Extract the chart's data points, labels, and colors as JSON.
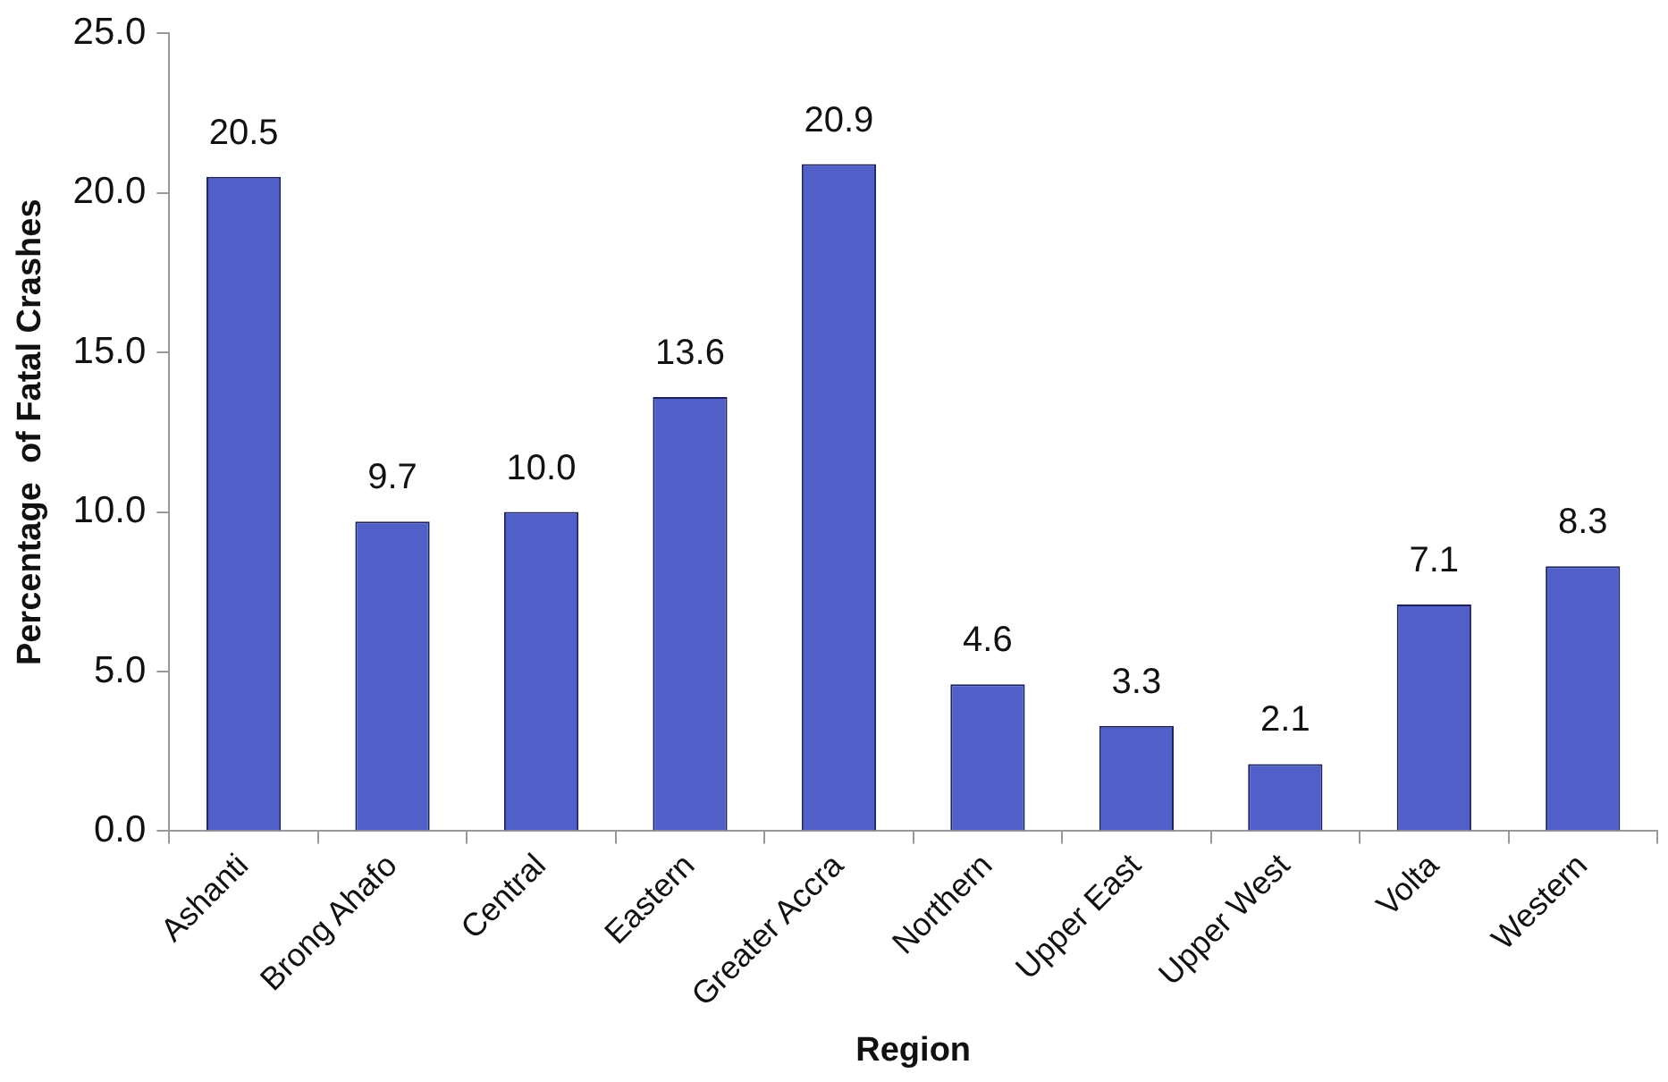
{
  "chart_data": {
    "type": "bar",
    "xlabel": "Region",
    "ylabel": "Percentage  of Fatal Crashes",
    "categories": [
      "Ashanti",
      "Brong Ahafo",
      "Central",
      "Eastern",
      "Greater Accra",
      "Northern",
      "Upper East",
      "Upper West",
      "Volta",
      "Western"
    ],
    "values": [
      20.5,
      9.7,
      10.0,
      13.6,
      20.9,
      4.6,
      3.3,
      2.1,
      7.1,
      8.3
    ],
    "value_labels": [
      "20.5",
      "9.7",
      "10.0",
      "13.6",
      "20.9",
      "4.6",
      "3.3",
      "2.1",
      "7.1",
      "8.3"
    ],
    "color": "#5060c8",
    "ylim": [
      0,
      25
    ],
    "yticks": [
      {
        "value": 0,
        "label": "0.0"
      },
      {
        "value": 5,
        "label": "5.0"
      },
      {
        "value": 10,
        "label": "10.0"
      },
      {
        "value": 15,
        "label": "15.0"
      },
      {
        "value": 20,
        "label": "20.0"
      },
      {
        "value": 25,
        "label": "25.0"
      }
    ]
  }
}
